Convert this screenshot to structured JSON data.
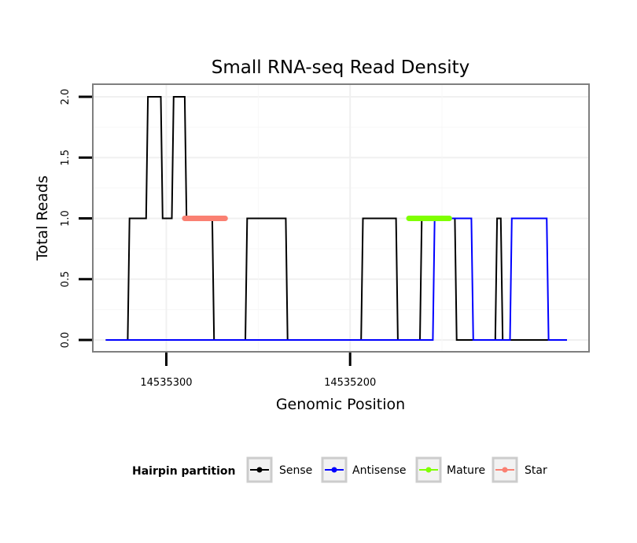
{
  "chart_data": {
    "type": "line",
    "title": "Small RNA-seq Read Density",
    "xlabel": "Genomic Position",
    "ylabel": "Total Reads",
    "ylim": [
      0,
      2.05
    ],
    "xlim": [
      14535340,
      14535070
    ],
    "x_reversed": true,
    "yticks": [
      {
        "value": 0,
        "label": "0.0"
      },
      {
        "value": 0.5,
        "label": "0.5"
      },
      {
        "value": 1,
        "label": "1.0"
      },
      {
        "value": 1.5,
        "label": "1.5"
      },
      {
        "value": 2,
        "label": "2.0"
      }
    ],
    "xticks": [
      {
        "value": 14535300,
        "label": "14535300"
      },
      {
        "value": 14535200,
        "label": "14535200"
      }
    ],
    "grid": true,
    "legend": {
      "title": "Hairpin partition",
      "position": "bottom",
      "entries": [
        {
          "label": "Sense",
          "color": "#000000"
        },
        {
          "label": "Antisense",
          "color": "#0000ff"
        },
        {
          "label": "Mature",
          "color": "#7fff00"
        },
        {
          "label": "Star",
          "color": "#fa8072"
        }
      ]
    },
    "series": [
      {
        "name": "Sense",
        "color": "#000000",
        "points": [
          [
            14535333,
            0
          ],
          [
            14535321,
            0
          ],
          [
            14535320,
            1
          ],
          [
            14535311,
            1
          ],
          [
            14535310,
            2
          ],
          [
            14535303,
            2
          ],
          [
            14535302,
            1
          ],
          [
            14535297,
            1
          ],
          [
            14535296,
            2
          ],
          [
            14535290,
            2
          ],
          [
            14535289,
            1
          ],
          [
            14535275,
            1
          ],
          [
            14535274,
            0
          ],
          [
            14535257,
            0
          ],
          [
            14535256,
            1
          ],
          [
            14535235,
            1
          ],
          [
            14535234,
            0
          ],
          [
            14535194,
            0
          ],
          [
            14535193,
            1
          ],
          [
            14535175,
            1
          ],
          [
            14535174,
            0
          ],
          [
            14535162,
            0
          ],
          [
            14535161,
            1
          ],
          [
            14535143,
            1
          ],
          [
            14535142,
            0
          ],
          [
            14535121,
            0
          ],
          [
            14535120,
            1
          ],
          [
            14535118,
            1
          ],
          [
            14535117,
            0
          ],
          [
            14535100,
            0
          ],
          [
            14535082,
            0
          ]
        ]
      },
      {
        "name": "Antisense",
        "color": "#0000ff",
        "points": [
          [
            14535333,
            0
          ],
          [
            14535155,
            0
          ],
          [
            14535154,
            1
          ],
          [
            14535134,
            1
          ],
          [
            14535133,
            0
          ],
          [
            14535113,
            0
          ],
          [
            14535112,
            1
          ],
          [
            14535093,
            1
          ],
          [
            14535092,
            0
          ],
          [
            14535082,
            0
          ]
        ]
      },
      {
        "name": "Mature",
        "color": "#7fff00",
        "points": [
          [
            14535168,
            1
          ],
          [
            14535146,
            1
          ]
        ]
      },
      {
        "name": "Star",
        "color": "#fa8072",
        "points": [
          [
            14535290,
            1
          ],
          [
            14535268,
            1
          ]
        ]
      }
    ]
  }
}
